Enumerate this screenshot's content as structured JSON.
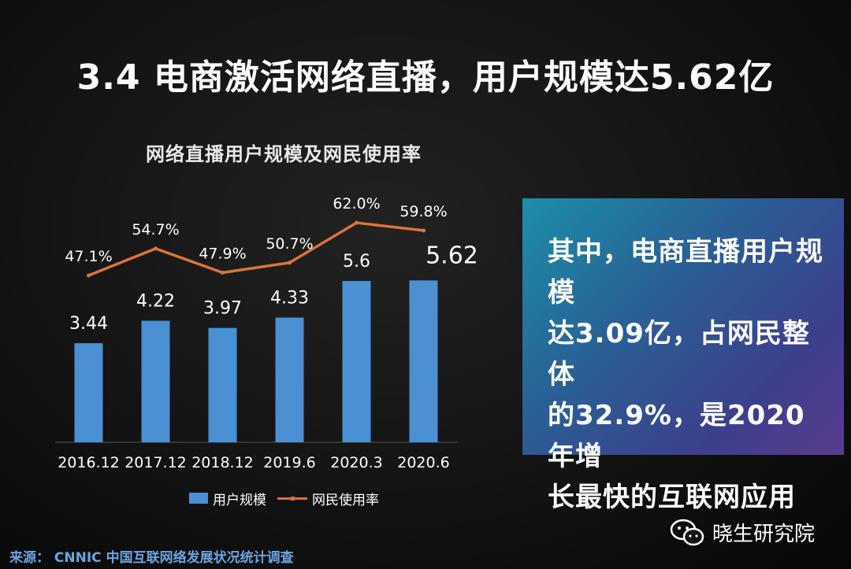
{
  "title": "3.4 电商激活网络直播，用户规模达5.62亿",
  "chart_data": {
    "type": "bar",
    "title": "网络直播用户规模及网民使用率",
    "categories": [
      "2016.12",
      "2017.12",
      "2018.12",
      "2019.6",
      "2020.3",
      "2020.6"
    ],
    "series": [
      {
        "name": "用户规模",
        "type": "bar",
        "values": [
          3.44,
          4.22,
          3.97,
          4.33,
          5.6,
          5.62
        ],
        "labels": [
          "3.44",
          "4.22",
          "3.97",
          "4.33",
          "5.6",
          "5.62"
        ],
        "color": "#4a90d2"
      },
      {
        "name": "网民使用率",
        "type": "line",
        "values": [
          47.1,
          54.7,
          47.9,
          50.7,
          62.0,
          59.8
        ],
        "labels": [
          "47.1%",
          "54.7%",
          "47.9%",
          "50.7%",
          "62.0%",
          "59.8%"
        ],
        "color": "#d9743c"
      }
    ],
    "legend_position": "bottom",
    "grid": false
  },
  "panel": {
    "lines": [
      "其中，电商直播用户规模",
      "达3.09亿，占网民整体",
      "的32.9%，是2020年增",
      "长最快的互联网应用"
    ]
  },
  "legend": {
    "bar_label": "用户规模",
    "line_label": "网民使用率"
  },
  "source": "来源： CNNIC 中国互联网络发展状况统计调查",
  "brand": {
    "name": "晓生研究院",
    "icon": "wechat-icon"
  }
}
